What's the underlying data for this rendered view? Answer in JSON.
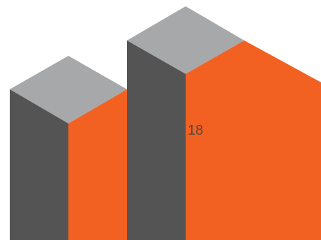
{
  "graphic": {
    "label": "18",
    "colors": {
      "background": "#ffffff",
      "top_face": "#a7a8aa",
      "left_face": "#545454",
      "right_face": "#f26122",
      "label": "#4a4a4a"
    }
  }
}
